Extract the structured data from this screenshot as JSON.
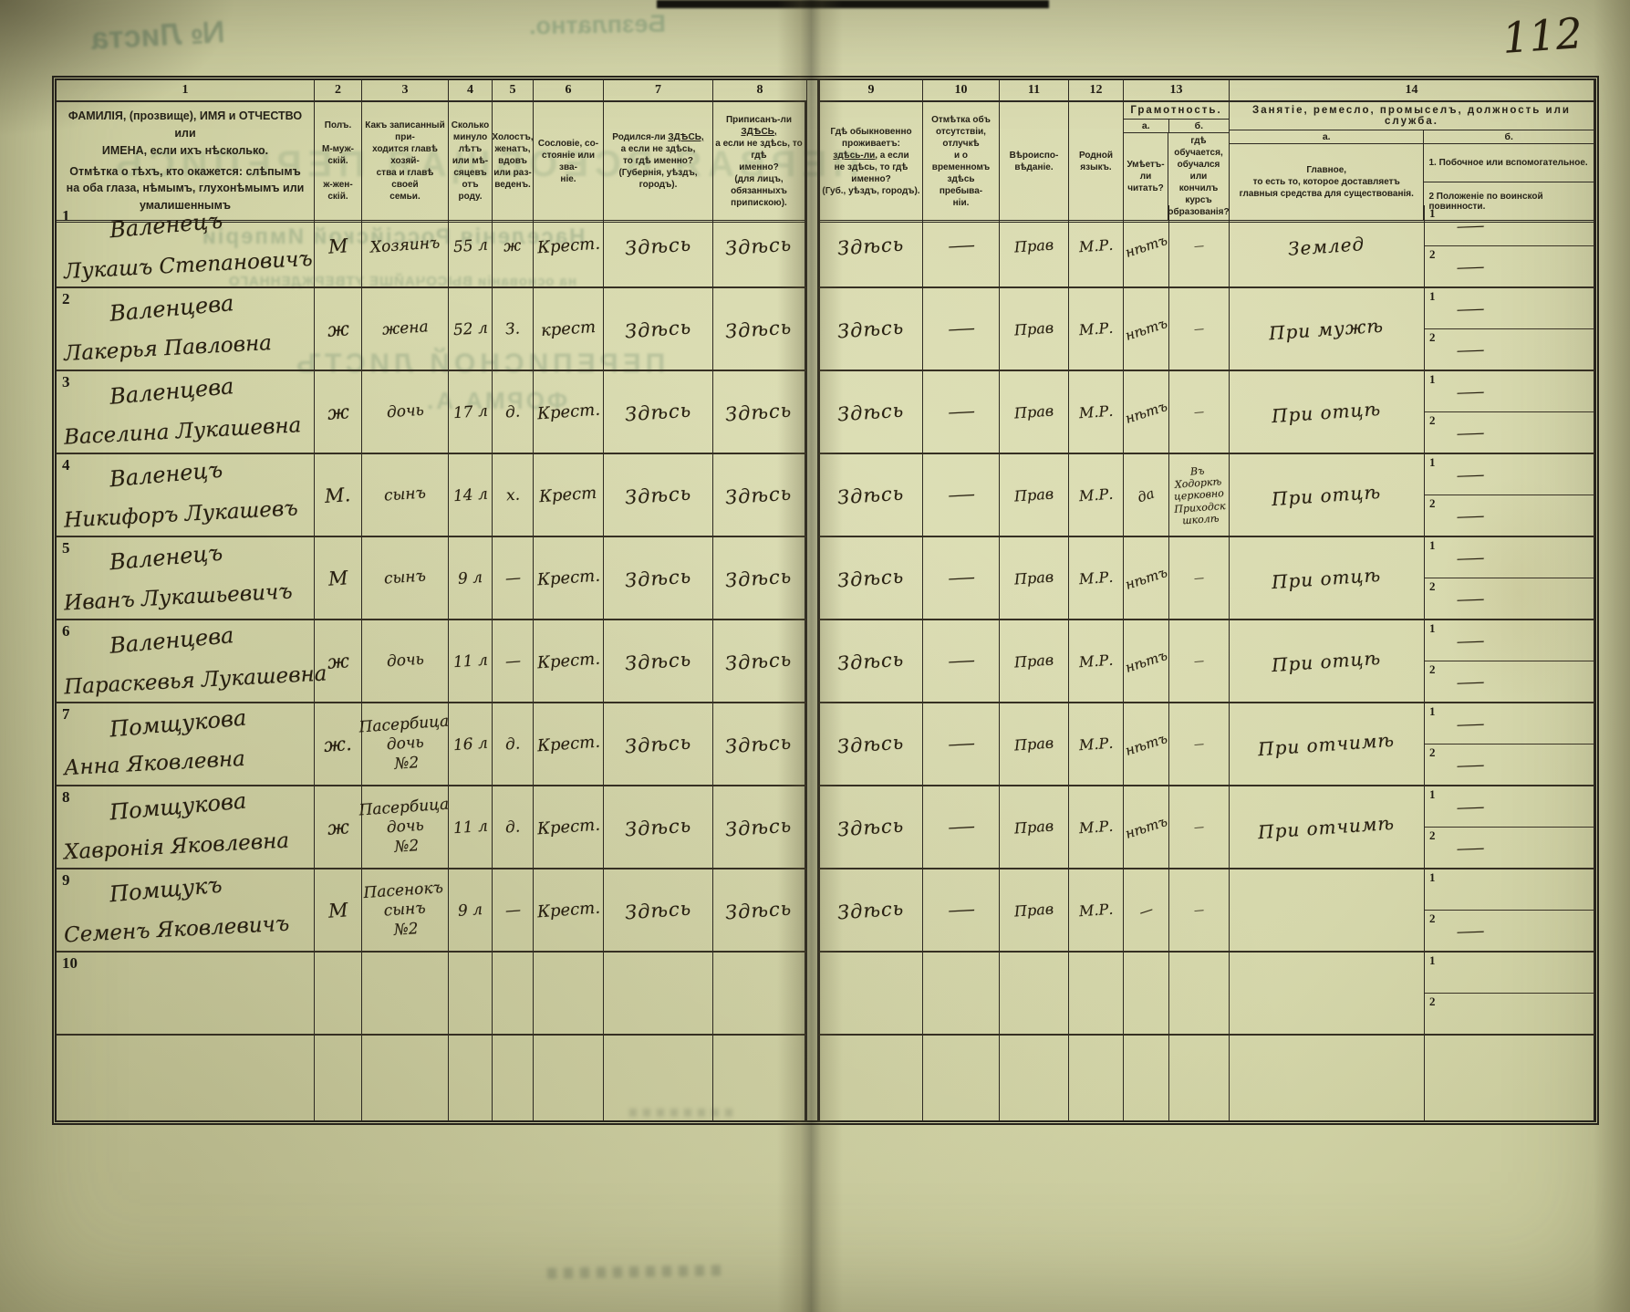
{
  "page_number": "112",
  "ghosts": {
    "g1": "№ Листа",
    "g2": "Безплатно.",
    "g3": "ПЕРВАЯ ВСЕОБЩАЯ ПЕРЕПИСЬ",
    "g4": "Населенія Россійской Имперіи",
    "g5": "на основаніи ВЫСОЧАЙШЕ УТВЕРЖДЕННАГО",
    "g6": "ПЕРЕПИСНОЙ ЛИСТЪ",
    "g7": "ФОРМА А."
  },
  "labels": {
    "sub1": "1",
    "sub2": "2"
  },
  "columns": {
    "c1": {
      "num": "1",
      "line1": "ФАМИЛІЯ, (прозвище), ИМЯ и ОТЧЕСТВО или\nИМЕНА, если ихъ нѣсколько.",
      "line2": "Отмѣтка о тѣхъ, кто окажется: слѣпымъ\nна оба глаза, нѣмымъ, глухонѣмымъ или\nумалишеннымъ"
    },
    "c2": {
      "num": "2",
      "text": "Полъ.\n\nМ-муж-\nскій.\n\nж-жен-\nскій."
    },
    "c3": {
      "num": "3",
      "text": "Какъ записанный при-\nходится главѣ хозяй-\nства и главѣ своей\nсемьи."
    },
    "c4": {
      "num": "4",
      "text": "Сколько\nминуло\nлѣтъ\nили мѣ-\nсяцевъ\nотъ роду."
    },
    "c5": {
      "num": "5",
      "text": "Холостъ,\nженатъ,\nвдовъ\nили раз-\nведенъ."
    },
    "c6": {
      "num": "6",
      "text": "Сословіе, со-\nстояніе или зва-\nніе."
    },
    "c7": {
      "num": "7",
      "pre": "Родился-ли ",
      "u": "ЗДѢСЬ,",
      "rest": "\nа если не здѣсь,\nто гдѣ именно?\n(Губернія, уѣздъ, городъ)."
    },
    "c8": {
      "num": "8",
      "pre": "Приписанъ-ли ",
      "u": "ЗДѢСЬ,",
      "rest": "\nа если не здѣсь, то гдѣ\nименно?\n(для лицъ, обязанныхъ\nприпискою)."
    },
    "c9": {
      "num": "9",
      "pre": "Гдѣ обыкновенно\nпроживаетъ:\n",
      "u": "здѣсь-ли,",
      "rest": " а если\nне здѣсь, то гдѣ\nименно?\n(Губ., уѣздъ, городъ)."
    },
    "c10": {
      "num": "10",
      "text": "Отмѣтка объ\nотсутствіи, отлучкѣ\nи о временномъ\nздѣсь пребыва-\nніи."
    },
    "c11": {
      "num": "11",
      "text": "Вѣроиспо-\nвѣданіе."
    },
    "c12": {
      "num": "12",
      "text": "Родной\nязыкъ."
    },
    "c13": {
      "num": "13",
      "title": "Грамотность.",
      "a": "а.",
      "b": "б.",
      "a_text": "Умѣетъ-\nли\nчитать?",
      "b_text": "гдѣ обучается,\nобучался или\nкончилъ курсъ\nобразованія?"
    },
    "c14": {
      "num": "14",
      "title": "Занятіе, ремесло, промыселъ, должность или служба.",
      "a": "а.",
      "b": "б.",
      "a_text": "Главное,\nто есть то, которое доставляетъ\nглавныя средства для существованія.",
      "b1": "1.  Побочное или  вспомогательное.",
      "b2": "2   Положеніе по воинской повинности."
    }
  },
  "rows": [
    {
      "num": "1",
      "surname": "Валенецъ",
      "name": "Лукашъ Степановичъ",
      "sex": "М",
      "relation": "Хозяинъ",
      "age": "55 л",
      "marital": "ж",
      "estate": "Крест.",
      "born": "Здѣсь",
      "registered": "Здѣсь",
      "resides": "Здѣсь",
      "absence": "—",
      "religion": "Прав",
      "language": "М.Р.",
      "literacy": "нѣтъ",
      "education": "—",
      "occupation": "Землед",
      "side1": "—",
      "side2": "—"
    },
    {
      "num": "2",
      "surname": "Валенцева",
      "name": "Лакерья Павловна",
      "sex": "ж",
      "relation": "жена",
      "age": "52 л",
      "marital": "З.",
      "estate": "крест",
      "born": "Здѣсь",
      "registered": "Здѣсь",
      "resides": "Здѣсь",
      "absence": "—",
      "religion": "Прав",
      "language": "М.Р.",
      "literacy": "нѣтъ",
      "education": "—",
      "occupation": "При мужѣ",
      "side1": "—",
      "side2": "—"
    },
    {
      "num": "3",
      "surname": "Валенцева",
      "name": "Васелина Лукашевна",
      "sex": "ж",
      "relation": "дочь",
      "age": "17 л",
      "marital": "д.",
      "estate": "Крест.",
      "born": "Здѣсь",
      "registered": "Здѣсь",
      "resides": "Здѣсь",
      "absence": "—",
      "religion": "Прав",
      "language": "М.Р.",
      "literacy": "нѣтъ",
      "education": "—",
      "occupation": "При отцѣ",
      "side1": "—",
      "side2": "—"
    },
    {
      "num": "4",
      "surname": "Валенецъ",
      "name": "Никифоръ Лукашевъ",
      "sex": "М.",
      "relation": "сынъ",
      "age": "14 л",
      "marital": "х.",
      "estate": "Крест",
      "born": "Здѣсь",
      "registered": "Здѣсь",
      "resides": "Здѣсь",
      "absence": "—",
      "religion": "Прав",
      "language": "М.Р.",
      "literacy": "да",
      "education": "Въ Ходоркѣ\nцерковно\nПриходск\nшколѣ",
      "occupation": "При отцѣ",
      "side1": "—",
      "side2": "—"
    },
    {
      "num": "5",
      "surname": "Валенецъ",
      "name": "Иванъ Лукашьевичъ",
      "sex": "М",
      "relation": "сынъ",
      "age": "9 л",
      "marital": "—",
      "estate": "Крест.",
      "born": "Здѣсь",
      "registered": "Здѣсь",
      "resides": "Здѣсь",
      "absence": "—",
      "religion": "Прав",
      "language": "М.Р.",
      "literacy": "нѣтъ",
      "education": "—",
      "occupation": "При отцѣ",
      "side1": "—",
      "side2": "—"
    },
    {
      "num": "6",
      "surname": "Валенцева",
      "name": "Параскевья Лукашевна",
      "sex": "ж",
      "relation": "дочь",
      "age": "11 л",
      "marital": "—",
      "estate": "Крест.",
      "born": "Здѣсь",
      "registered": "Здѣсь",
      "resides": "Здѣсь",
      "absence": "—",
      "religion": "Прав",
      "language": "М.Р.",
      "literacy": "нѣтъ",
      "education": "—",
      "occupation": "При отцѣ",
      "side1": "—",
      "side2": "—"
    },
    {
      "num": "7",
      "surname": "Помщукова",
      "name": "Анна Яковлевна",
      "sex": "ж.",
      "relation": "Пасербица\nдочь\n№2",
      "age": "16 л",
      "marital": "д.",
      "estate": "Крест.",
      "born": "Здѣсь",
      "registered": "Здѣсь",
      "resides": "Здѣсь",
      "absence": "—",
      "religion": "Прав",
      "language": "М.Р.",
      "literacy": "нѣтъ",
      "education": "—",
      "occupation": "При отчимѣ",
      "side1": "—",
      "side2": "—"
    },
    {
      "num": "8",
      "surname": "Помщукова",
      "name": "Хавронія Яковлевна",
      "sex": "ж",
      "relation": "Пасербица\nдочь\n№2",
      "age": "11 л",
      "marital": "д.",
      "estate": "Крест.",
      "born": "Здѣсь",
      "registered": "Здѣсь",
      "resides": "Здѣсь",
      "absence": "—",
      "religion": "Прав",
      "language": "М.Р.",
      "literacy": "нѣтъ",
      "education": "—",
      "occupation": "При отчимѣ",
      "side1": "—",
      "side2": "—"
    },
    {
      "num": "9",
      "surname": "Помщукъ",
      "name": "Семенъ Яковлевичъ",
      "sex": "М",
      "relation": "Пасенокъ\nсынъ\n№2",
      "age": "9 л",
      "marital": "—",
      "estate": "Крест.",
      "born": "Здѣсь",
      "registered": "Здѣсь",
      "resides": "Здѣсь",
      "absence": "—",
      "religion": "Прав",
      "language": "М.Р.",
      "literacy": "—",
      "education": "—",
      "occupation": "",
      "side1": "",
      "side2": "—"
    },
    {
      "num": "10",
      "surname": "",
      "name": "",
      "sex": "",
      "relation": "",
      "age": "",
      "marital": "",
      "estate": "",
      "born": "",
      "registered": "",
      "resides": "",
      "absence": "",
      "religion": "",
      "language": "",
      "literacy": "",
      "education": "",
      "occupation": "",
      "side1": "",
      "side2": ""
    }
  ]
}
